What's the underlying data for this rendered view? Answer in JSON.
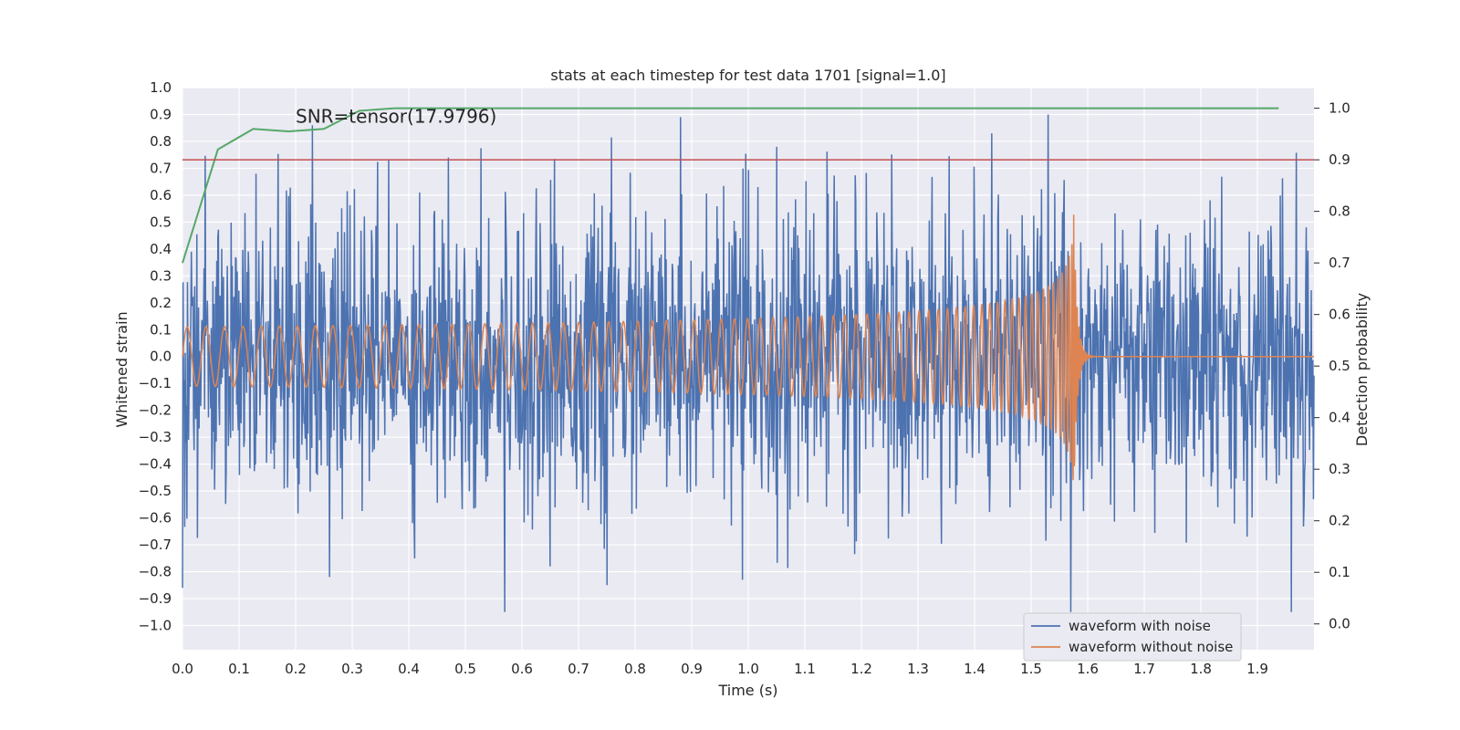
{
  "chart_data": {
    "type": "line",
    "title": "stats at each timestep for test data 1701 [signal=1.0]",
    "xlabel": "Time (s)",
    "ylabel": "Whitened strain",
    "y2label": "Detection probability",
    "xlim": [
      0.0,
      2.0
    ],
    "ylim": [
      -1.09,
      1.0
    ],
    "y2lim": [
      -0.05,
      1.04
    ],
    "x_ticks": [
      0.0,
      0.1,
      0.2,
      0.3,
      0.4,
      0.5,
      0.6,
      0.7,
      0.8,
      0.9,
      1.0,
      1.1,
      1.2,
      1.3,
      1.4,
      1.5,
      1.6,
      1.7,
      1.8,
      1.9
    ],
    "x_tick_labels": [
      "0.0",
      "0.1",
      "0.2",
      "0.3",
      "0.4",
      "0.5",
      "0.6",
      "0.7",
      "0.8",
      "0.9",
      "1.0",
      "1.1",
      "1.2",
      "1.3",
      "1.4",
      "1.5",
      "1.6",
      "1.7",
      "1.8",
      "1.9"
    ],
    "y_ticks": [
      1.0,
      0.9,
      0.8,
      0.7,
      0.6,
      0.5,
      0.4,
      0.3,
      0.2,
      0.1,
      0.0,
      -0.1,
      -0.2,
      -0.3,
      -0.4,
      -0.5,
      -0.6,
      -0.7,
      -0.8,
      -0.9,
      -1.0
    ],
    "y_tick_labels": [
      "1.0",
      "0.9",
      "0.8",
      "0.7",
      "0.6",
      "0.5",
      "0.4",
      "0.3",
      "0.2",
      "0.1",
      "0.0",
      "−0.1",
      "−0.2",
      "−0.3",
      "−0.4",
      "−0.5",
      "−0.6",
      "−0.7",
      "−0.8",
      "−0.9",
      "−1.0"
    ],
    "y2_ticks": [
      1.0,
      0.9,
      0.8,
      0.7,
      0.6,
      0.5,
      0.4,
      0.3,
      0.2,
      0.1,
      0.0
    ],
    "y2_tick_labels": [
      "1.0",
      "0.9",
      "0.8",
      "0.7",
      "0.6",
      "0.5",
      "0.4",
      "0.3",
      "0.2",
      "0.1",
      "0.0"
    ],
    "annotation": "SNR=tensor(17.9796)",
    "annotation_position": [
      0.2,
      0.89
    ],
    "grid": true,
    "legend_position": "lower-right",
    "series": [
      {
        "name": "waveform with noise",
        "axis": "left",
        "color": "#4c72b0",
        "generated": "noisy",
        "x_range": [
          0.0,
          2.0
        ],
        "samples": 2048,
        "amplitude_rms": 0.27,
        "peaks": [
          {
            "x": 0.23,
            "y": 0.86
          },
          {
            "x": 0.88,
            "y": 0.89
          },
          {
            "x": 1.53,
            "y": 0.91
          },
          {
            "x": 0.47,
            "y": 0.74
          },
          {
            "x": 1.05,
            "y": 0.78
          },
          {
            "x": 1.43,
            "y": 0.83
          },
          {
            "x": 0.0,
            "y": -0.86
          },
          {
            "x": 0.57,
            "y": -0.95
          },
          {
            "x": 0.75,
            "y": -0.85
          },
          {
            "x": 0.99,
            "y": -0.83
          },
          {
            "x": 1.57,
            "y": -0.95
          },
          {
            "x": 1.96,
            "y": -0.95
          },
          {
            "x": 0.26,
            "y": -0.82
          },
          {
            "x": 0.65,
            "y": -0.78
          }
        ]
      },
      {
        "name": "waveform without noise",
        "axis": "left",
        "color": "#dd8452",
        "generated": "chirp",
        "start_amplitude": 0.11,
        "peak_amplitude": 0.62,
        "merger_time": 1.575,
        "ringdown_end": 1.6,
        "x_range": [
          0.0,
          2.0
        ]
      },
      {
        "name": "detection probability",
        "axis": "right",
        "color": "#55a868",
        "x": [
          0.0,
          0.0625,
          0.125,
          0.1875,
          0.25,
          0.3125,
          0.375,
          0.4375,
          0.5,
          0.75,
          1.0,
          1.25,
          1.5,
          1.75,
          1.9375
        ],
        "y": [
          0.7,
          0.92,
          0.96,
          0.955,
          0.96,
          0.995,
          1.0,
          1.0,
          1.0,
          1.0,
          1.0,
          1.0,
          1.0,
          1.0,
          1.0
        ]
      },
      {
        "name": "detection threshold",
        "axis": "right",
        "color": "#c44e52",
        "x": [
          0.0,
          2.0
        ],
        "y": [
          0.9,
          0.9
        ]
      }
    ]
  }
}
